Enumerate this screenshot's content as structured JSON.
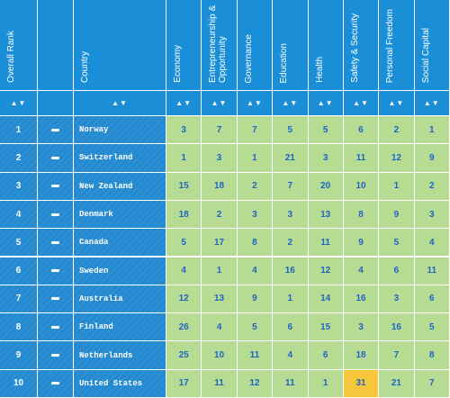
{
  "table": {
    "headers": [
      "Overall Rank",
      "Country",
      "Economy",
      "Entrepreneurship & Opportunity",
      "Governance",
      "Education",
      "Health",
      "Safety & Security",
      "Personal Freedom",
      "Social Capital"
    ],
    "rows": [
      {
        "rank": 1,
        "country": "Norway",
        "scores": [
          3,
          7,
          7,
          5,
          5,
          6,
          2,
          1
        ]
      },
      {
        "rank": 2,
        "country": "Switzerland",
        "scores": [
          1,
          3,
          1,
          21,
          3,
          11,
          12,
          9
        ]
      },
      {
        "rank": 3,
        "country": "New Zealand",
        "scores": [
          15,
          18,
          2,
          7,
          20,
          10,
          1,
          2
        ]
      },
      {
        "rank": 4,
        "country": "Denmark",
        "scores": [
          18,
          2,
          3,
          3,
          13,
          8,
          9,
          3
        ]
      },
      {
        "rank": 5,
        "country": "Canada",
        "scores": [
          5,
          17,
          8,
          2,
          11,
          9,
          5,
          4
        ]
      },
      {
        "rank": 6,
        "country": "Sweden",
        "scores": [
          4,
          1,
          4,
          16,
          12,
          4,
          6,
          11
        ]
      },
      {
        "rank": 7,
        "country": "Australia",
        "scores": [
          12,
          13,
          9,
          1,
          14,
          16,
          3,
          6
        ]
      },
      {
        "rank": 8,
        "country": "Finland",
        "scores": [
          26,
          4,
          5,
          6,
          15,
          3,
          16,
          5
        ]
      },
      {
        "rank": 9,
        "country": "Netherlands",
        "scores": [
          25,
          10,
          11,
          4,
          6,
          18,
          7,
          8
        ]
      },
      {
        "rank": 10,
        "country": "United States",
        "scores": [
          17,
          11,
          12,
          11,
          1,
          31,
          21,
          7
        ]
      }
    ],
    "highlight": {
      "row": 9,
      "score": 5,
      "color": "#f6c63c"
    }
  }
}
